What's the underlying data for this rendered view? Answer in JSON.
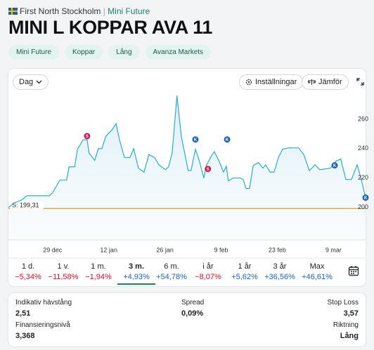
{
  "header": {
    "exchange": "First North Stockholm",
    "category": "Mini Future",
    "title": "MINI L KOPPAR AVA 11"
  },
  "tags": [
    "Mini Future",
    "Koppar",
    "Lång",
    "Avanza Markets"
  ],
  "toolbar": {
    "interval": "Dag",
    "settings": "Inställningar",
    "compare": "Jämför"
  },
  "chart_data": {
    "type": "line",
    "color": "#2aaec4",
    "grid": false,
    "x": [
      0,
      1.4,
      3.2,
      4.6,
      10.2,
      11.0,
      12.8,
      14.5,
      15.1,
      16.5,
      17.2,
      18.6,
      19.6,
      20.1,
      21.5,
      22.4,
      23.3,
      24.2,
      25.0,
      25.9,
      26.8,
      27.7,
      28.9,
      30.3,
      31.2,
      32.4,
      33.8,
      35.0,
      36.4,
      37.5,
      39.1,
      39.9,
      40.8,
      42.0,
      43.1,
      43.8,
      44.8,
      45.5,
      46.6,
      47.6,
      48.7,
      49.4,
      50.4,
      51.3,
      52.5,
      53.6,
      54.3,
      54.8,
      56.0,
      57.8,
      58.5,
      59.2,
      60.1,
      61.0,
      62.3,
      63.4,
      64.1,
      65.2,
      66.2,
      67.3,
      68.3,
      69.7,
      72.3,
      73.6,
      75.0,
      76.4,
      77.6,
      80.2,
      81.6,
      82.8,
      84.1,
      85.5,
      86.9,
      87.9,
      89.0
    ],
    "values": [
      200,
      203,
      205,
      208,
      208,
      210,
      218.6,
      218.6,
      227.6,
      227.6,
      239.5,
      246,
      246,
      237,
      232,
      240,
      240,
      248,
      250.5,
      253,
      257,
      245.7,
      234,
      234,
      240,
      226.7,
      224,
      236,
      234,
      229,
      225.7,
      227.6,
      237,
      276,
      248,
      238.6,
      225,
      225,
      239.5,
      231.4,
      220,
      229,
      234,
      238,
      231.4,
      224,
      228,
      218,
      220,
      220,
      219,
      213,
      213,
      228.6,
      230.5,
      226.7,
      229,
      224,
      224,
      234,
      239.5,
      240.5,
      240.5,
      236,
      225,
      229,
      225.7,
      226.7,
      231.4,
      233,
      219,
      219,
      229,
      219.5,
      206.7
    ],
    "xlim": [
      0,
      89
    ],
    "ylim": [
      178,
      279
    ],
    "xticks": [
      {
        "value": 11,
        "label": "29 dec"
      },
      {
        "value": 25,
        "label": "12 jan"
      },
      {
        "value": 39,
        "label": "26 jan"
      },
      {
        "value": 53,
        "label": "9 feb"
      },
      {
        "value": 67,
        "label": "23 feb"
      },
      {
        "value": 81,
        "label": "9 mar"
      }
    ],
    "yticks": [
      200,
      220,
      240,
      260
    ],
    "reference_line": {
      "value": 199.31,
      "label": "S: 199,31",
      "color": "#c9a227"
    },
    "markers": [
      {
        "label": "S",
        "x": 19.6,
        "y": 248.5,
        "color": "#d0194b"
      },
      {
        "label": "S",
        "x": 49.7,
        "y": 226.2,
        "color": "#d0194b"
      },
      {
        "label": "K",
        "x": 46.6,
        "y": 246.2,
        "color": "#1e63b5"
      },
      {
        "label": "K",
        "x": 54.5,
        "y": 246.2,
        "color": "#1e63b5"
      },
      {
        "label": "K",
        "x": 81.3,
        "y": 228.6,
        "color": "#1e63b5"
      },
      {
        "label": "K",
        "x": 89.0,
        "y": 206.7,
        "color": "#1e63b5"
      }
    ]
  },
  "periods": [
    {
      "label": "1 d.",
      "change": "−5,34%"
    },
    {
      "label": "1 v.",
      "change": "−11,58%"
    },
    {
      "label": "1 m.",
      "change": "−1,94%"
    },
    {
      "label": "3 m.",
      "change": "+4,93%"
    },
    {
      "label": "6 m.",
      "change": "+54,78%"
    },
    {
      "label": "i år",
      "change": "−8,07%"
    },
    {
      "label": "1 år",
      "change": "+5,62%"
    },
    {
      "label": "3 år",
      "change": "+36,56%"
    },
    {
      "label": "Max",
      "change": "+46,61%"
    }
  ],
  "active_period": 3,
  "stats": [
    {
      "label": "Indikativ hävstång",
      "value": "2,51"
    },
    {
      "label": "Spread",
      "value": "0,09%"
    },
    {
      "label": "Stop Loss",
      "value": "3,57"
    },
    {
      "label": "Finansieringsnivå",
      "value": "3,368"
    },
    {
      "label": "Riktning",
      "value": "Lång"
    }
  ]
}
